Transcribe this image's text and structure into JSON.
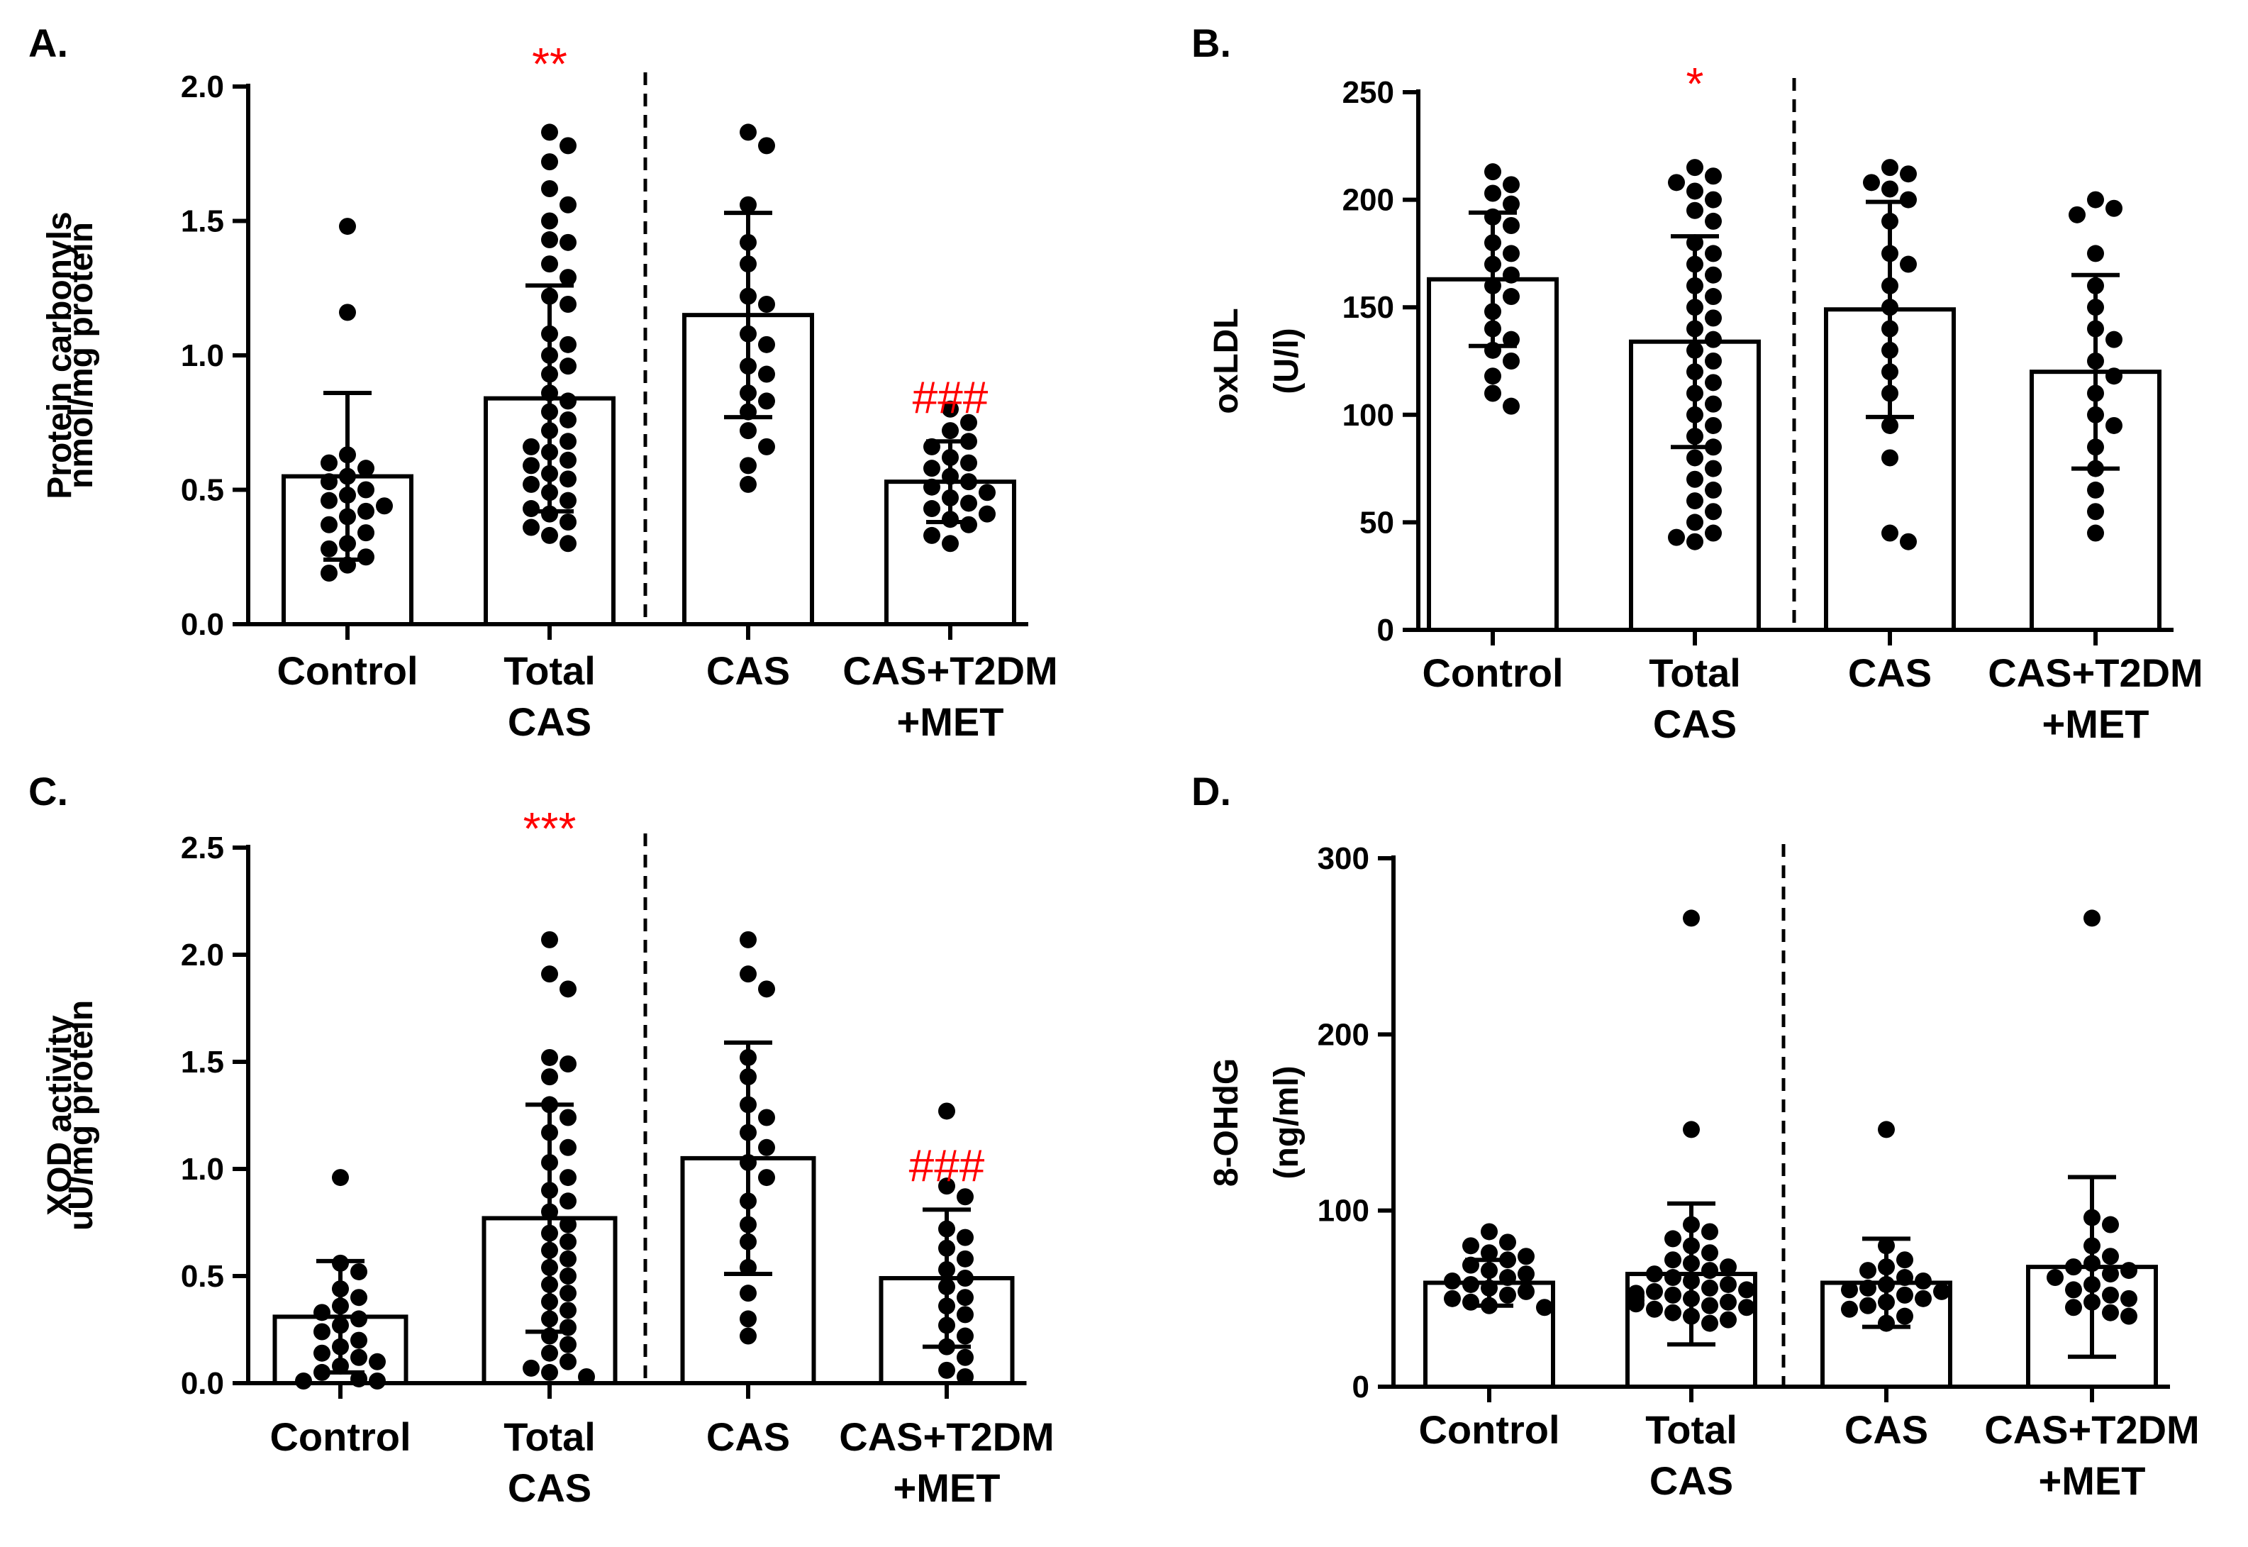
{
  "chart_data": [
    {
      "panel": "A.",
      "type": "bar",
      "title": "",
      "ylabel_lines": [
        "Protein carbonyls",
        "nmol/mg protein"
      ],
      "ylim": [
        0,
        2.0
      ],
      "yticks": [
        0.0,
        0.5,
        1.0,
        1.5,
        2.0
      ],
      "ytick_labels": [
        "0.0",
        "0.5",
        "1.0",
        "1.5",
        "2.0"
      ],
      "categories": [
        [
          "Control"
        ],
        [
          "Total",
          "CAS"
        ],
        [
          "CAS"
        ],
        [
          "CAS+T2DM",
          "+MET"
        ]
      ],
      "means": [
        0.55,
        0.84,
        1.15,
        0.53
      ],
      "sd": [
        0.31,
        0.42,
        0.38,
        0.15
      ],
      "significance": [
        "",
        "**",
        "",
        "###"
      ],
      "points": [
        [
          1.48,
          1.16,
          0.63,
          0.58,
          0.55,
          0.53,
          0.5,
          0.48,
          0.46,
          0.44,
          0.42,
          0.4,
          0.37,
          0.34,
          0.3,
          0.28,
          0.25,
          0.22,
          0.19,
          0.6
        ],
        [
          1.83,
          1.78,
          1.72,
          1.62,
          1.56,
          1.5,
          1.43,
          1.42,
          1.34,
          1.29,
          1.22,
          1.19,
          1.08,
          1.04,
          1.0,
          0.96,
          0.93,
          0.86,
          0.83,
          0.79,
          0.76,
          0.72,
          0.68,
          0.66,
          0.64,
          0.61,
          0.59,
          0.56,
          0.54,
          0.52,
          0.49,
          0.46,
          0.43,
          0.41,
          0.38,
          0.36,
          0.33,
          0.3
        ],
        [
          1.83,
          1.78,
          1.56,
          1.42,
          1.34,
          1.22,
          1.19,
          1.08,
          1.04,
          0.96,
          0.93,
          0.86,
          0.83,
          0.79,
          0.72,
          0.66,
          0.59,
          0.52
        ],
        [
          0.8,
          0.75,
          0.72,
          0.68,
          0.66,
          0.62,
          0.6,
          0.58,
          0.55,
          0.53,
          0.51,
          0.49,
          0.47,
          0.45,
          0.43,
          0.41,
          0.39,
          0.37,
          0.33,
          0.3
        ]
      ]
    },
    {
      "panel": "B.",
      "type": "bar",
      "title": "",
      "ylabel_lines": [
        "oxLDL",
        "(U/l)"
      ],
      "ylim": [
        0,
        250
      ],
      "yticks": [
        0,
        50,
        100,
        150,
        200,
        250
      ],
      "ytick_labels": [
        "0",
        "50",
        "100",
        "150",
        "200",
        "250"
      ],
      "categories": [
        [
          "Control"
        ],
        [
          "Total",
          "CAS"
        ],
        [
          "CAS"
        ],
        [
          "CAS+T2DM",
          "+MET"
        ]
      ],
      "means": [
        163,
        134,
        149,
        120
      ],
      "sd": [
        31,
        49,
        50,
        45
      ],
      "significance": [
        "",
        "*",
        "",
        ""
      ],
      "points": [
        [
          213,
          207,
          203,
          198,
          192,
          188,
          180,
          175,
          170,
          165,
          160,
          155,
          148,
          140,
          135,
          130,
          125,
          118,
          110,
          104
        ],
        [
          215,
          211,
          208,
          204,
          200,
          195,
          190,
          180,
          175,
          170,
          165,
          160,
          155,
          150,
          145,
          140,
          135,
          130,
          125,
          120,
          115,
          110,
          105,
          100,
          95,
          90,
          85,
          80,
          75,
          70,
          65,
          60,
          55,
          50,
          45,
          43,
          41
        ],
        [
          215,
          212,
          208,
          205,
          200,
          190,
          175,
          170,
          160,
          150,
          140,
          130,
          120,
          110,
          95,
          80,
          45,
          41
        ],
        [
          200,
          196,
          193,
          175,
          160,
          150,
          140,
          135,
          125,
          118,
          110,
          100,
          95,
          85,
          75,
          65,
          55,
          45
        ]
      ]
    },
    {
      "panel": "C.",
      "type": "bar",
      "title": "",
      "ylabel_lines": [
        "XOD activity",
        "uU/mg protein"
      ],
      "ylim": [
        0,
        2.5
      ],
      "yticks": [
        0.0,
        0.5,
        1.0,
        1.5,
        2.0,
        2.5
      ],
      "ytick_labels": [
        "0.0",
        "0.5",
        "1.0",
        "1.5",
        "2.0",
        "2.5"
      ],
      "categories": [
        [
          "Control"
        ],
        [
          "Total",
          "CAS"
        ],
        [
          "CAS"
        ],
        [
          "CAS+T2DM",
          "+MET"
        ]
      ],
      "means": [
        0.31,
        0.77,
        1.05,
        0.49
      ],
      "sd": [
        0.26,
        0.53,
        0.54,
        0.32
      ],
      "significance": [
        "",
        "***",
        "",
        "###"
      ],
      "points": [
        [
          0.96,
          0.56,
          0.52,
          0.44,
          0.4,
          0.36,
          0.33,
          0.3,
          0.27,
          0.24,
          0.2,
          0.17,
          0.14,
          0.12,
          0.1,
          0.08,
          0.05,
          0.02,
          0.01,
          0.01
        ],
        [
          2.07,
          1.91,
          1.84,
          1.52,
          1.49,
          1.43,
          1.3,
          1.24,
          1.17,
          1.1,
          1.03,
          0.96,
          0.9,
          0.85,
          0.8,
          0.74,
          0.7,
          0.66,
          0.62,
          0.58,
          0.54,
          0.5,
          0.46,
          0.42,
          0.38,
          0.34,
          0.3,
          0.26,
          0.22,
          0.18,
          0.14,
          0.1,
          0.07,
          0.05,
          0.03
        ],
        [
          2.07,
          1.91,
          1.84,
          1.52,
          1.43,
          1.3,
          1.24,
          1.17,
          1.1,
          1.03,
          0.96,
          0.85,
          0.74,
          0.66,
          0.54,
          0.42,
          0.3,
          0.22
        ],
        [
          1.27,
          0.92,
          0.87,
          0.72,
          0.68,
          0.63,
          0.58,
          0.53,
          0.49,
          0.45,
          0.4,
          0.36,
          0.32,
          0.27,
          0.22,
          0.17,
          0.12,
          0.06,
          0.03
        ]
      ]
    },
    {
      "panel": "D.",
      "type": "bar",
      "title": "",
      "ylabel_lines": [
        "8-OHdG",
        "(ng/ml)"
      ],
      "ylim": [
        0,
        300
      ],
      "yticks": [
        0,
        100,
        200,
        300
      ],
      "ytick_labels": [
        "0",
        "100",
        "200",
        "300"
      ],
      "categories": [
        [
          "Control"
        ],
        [
          "Total",
          "CAS"
        ],
        [
          "CAS"
        ],
        [
          "CAS+T2DM",
          "+MET"
        ]
      ],
      "means": [
        59,
        64,
        59,
        68
      ],
      "sd": [
        13,
        40,
        25,
        51
      ],
      "significance": [
        "",
        "",
        "",
        ""
      ],
      "points": [
        [
          88,
          82,
          80,
          76,
          74,
          72,
          69,
          66,
          64,
          62,
          60,
          58,
          56,
          54,
          52,
          50,
          48,
          46,
          45
        ],
        [
          266,
          146,
          92,
          88,
          84,
          80,
          76,
          72,
          70,
          68,
          66,
          64,
          62,
          60,
          58,
          56,
          55,
          54,
          53,
          52,
          51,
          50,
          49,
          48,
          47,
          46,
          45,
          44,
          42,
          40,
          38,
          36
        ],
        [
          146,
          80,
          72,
          68,
          66,
          62,
          60,
          58,
          56,
          55,
          54,
          52,
          50,
          48,
          46,
          44,
          40,
          36
        ],
        [
          266,
          96,
          92,
          80,
          74,
          70,
          68,
          66,
          64,
          62,
          58,
          55,
          52,
          50,
          48,
          45,
          42,
          40
        ]
      ]
    }
  ]
}
